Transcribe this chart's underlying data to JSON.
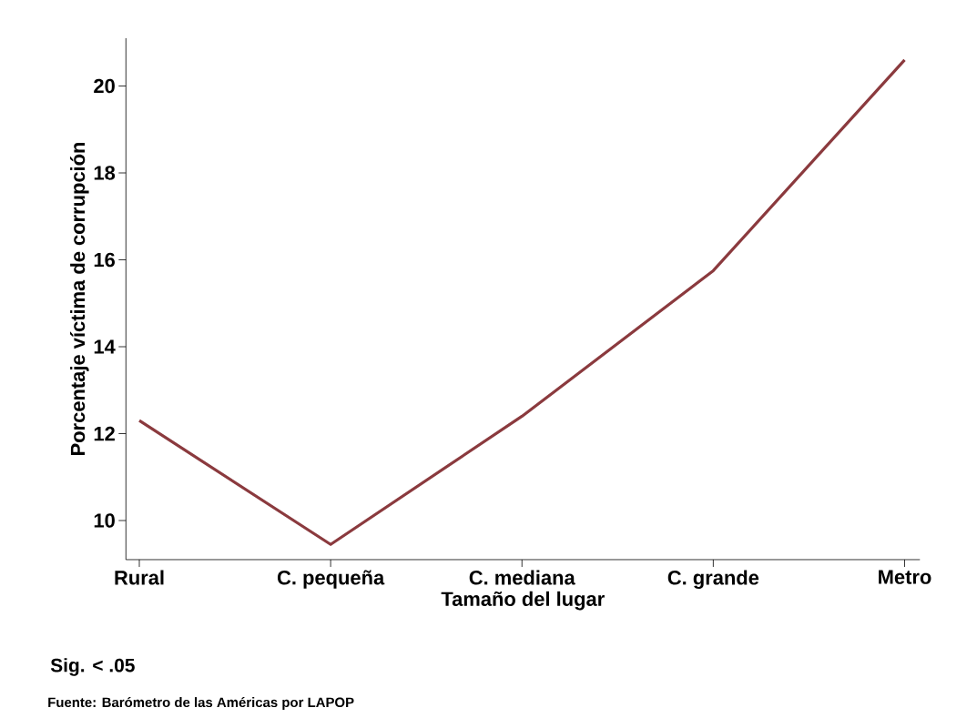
{
  "chart_data": {
    "type": "line",
    "xlabel": "Tamaño del lugar",
    "ylabel": "Porcentaje víctima de corrupción",
    "categories": [
      "Rural",
      "C. pequeña",
      "C. mediana",
      "C. grande",
      "Metro"
    ],
    "values": [
      12.3,
      9.45,
      12.4,
      15.75,
      20.6
    ],
    "color": "#8b3a3e",
    "ylim": [
      9.1,
      21.1
    ],
    "yticks": [
      10,
      12,
      14,
      16,
      18,
      20
    ],
    "grid": false,
    "marker": "none",
    "line_style": "solid",
    "annotations": [
      "Sig. < .05",
      "Fuente: Barómetro de las Américas por LAPOP"
    ]
  }
}
